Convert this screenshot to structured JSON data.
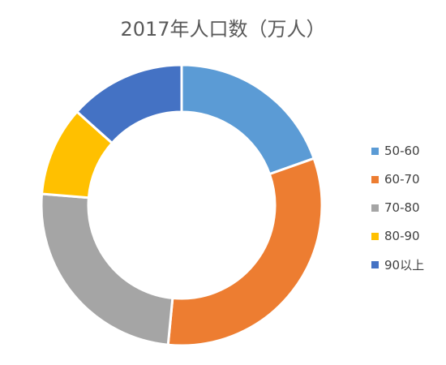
{
  "chart_data": {
    "type": "pie",
    "title": "2017年人口数（万人）",
    "categories": [
      "50-60",
      "60-70",
      "70-80",
      "80-90",
      "90以上"
    ],
    "values": [
      19,
      31,
      24,
      10,
      13
    ],
    "colors": [
      "#5B9BD5",
      "#ED7D31",
      "#A5A5A5",
      "#FFC000",
      "#4472C4"
    ],
    "legend": "right"
  }
}
